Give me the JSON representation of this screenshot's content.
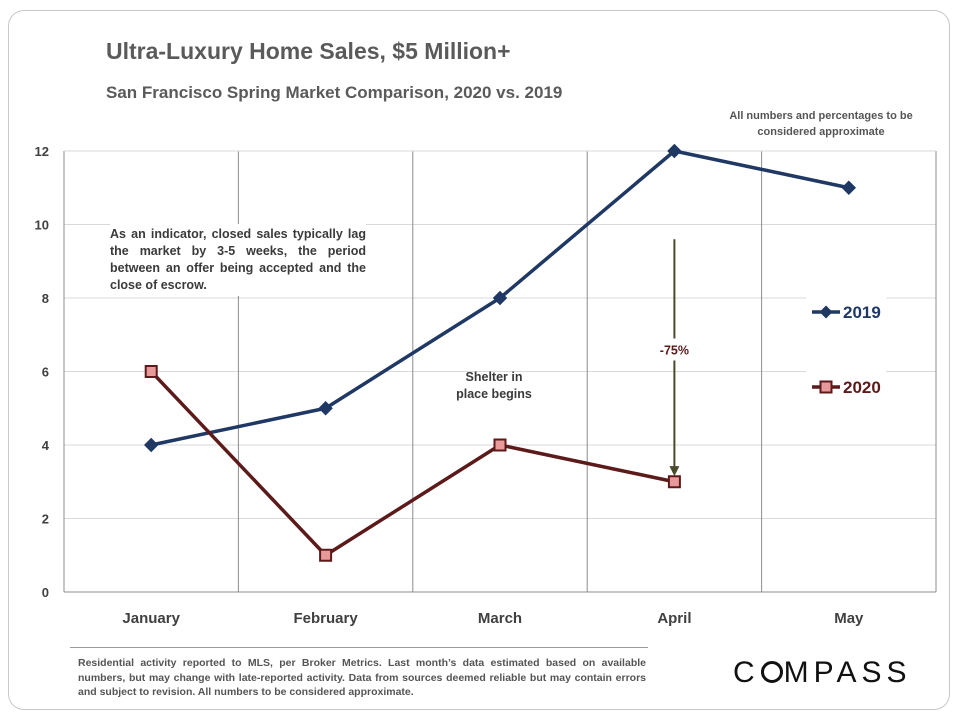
{
  "title": "Ultra-Luxury Home Sales, $5 Million+",
  "subtitle": "San Francisco Spring Market Comparison,  2020 vs. 2019",
  "approx_note": "All numbers and percentages to be considered approximate",
  "annotations": {
    "indicator": "As an indicator, closed sales typically lag the market by 3-5 weeks, the period between an offer being accepted and the close of escrow.",
    "shelter": "Shelter in place begins",
    "change": "-75%"
  },
  "footer": "Residential activity reported to MLS, per Broker Metrics. Last month’s data estimated based on available numbers, but may change with late-reported activity. Data from sources deemed reliable but may contain errors and subject to revision. All numbers to be considered approximate.",
  "logo": {
    "before": "C",
    "after": "MPASS",
    "full": "COMPASS"
  },
  "colors": {
    "series_2019": "#1f3864",
    "series_2020": "#5c1a1a",
    "marker_2020": "#e89a9a",
    "arrow": "#4a4a2a",
    "grid": "#8c8c8c"
  },
  "chart_data": {
    "type": "line",
    "categories": [
      "January",
      "February",
      "March",
      "April",
      "May"
    ],
    "series": [
      {
        "name": "2019",
        "values": [
          4,
          5,
          8,
          12,
          11
        ],
        "marker": "diamond"
      },
      {
        "name": "2020",
        "values": [
          6,
          1,
          4,
          3,
          null
        ],
        "marker": "square"
      }
    ],
    "y_ticks": [
      0,
      2,
      4,
      6,
      8,
      10,
      12
    ],
    "ylim": [
      0,
      12
    ],
    "legend": "right",
    "arrow_annotation": {
      "category": "April",
      "from_value": 9.6,
      "to_value": 3.1,
      "label": "-75%"
    }
  }
}
